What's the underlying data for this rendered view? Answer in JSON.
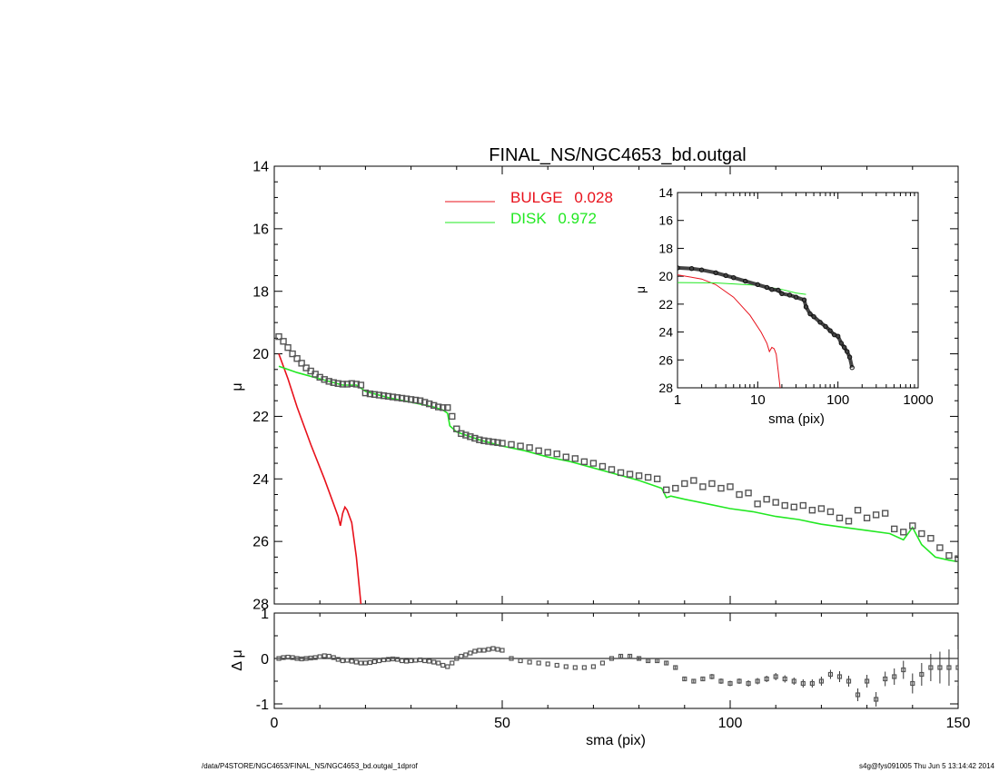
{
  "title": "FINAL_NS/NGC4653_bd.outgal",
  "footer": {
    "left": "/data/P4STORE/NGC4653/FINAL_NS/NGC4653_bd.outgal_1dprof",
    "right": "s4g@fys091005  Thu Jun  5 13:14:42 2014"
  },
  "colors": {
    "bulge": "#e8111b",
    "disk": "#22e822",
    "data": "#555555",
    "axis": "#000000"
  },
  "legend": [
    {
      "label": "BULGE",
      "value": "0.028",
      "color": "#e8111b"
    },
    {
      "label": "DISK",
      "value": "0.972",
      "color": "#22e822"
    }
  ],
  "chart_data": [
    {
      "name": "main-profile",
      "type": "line",
      "xlabel": "sma (pix)",
      "ylabel": "μ",
      "xlim": [
        0,
        150
      ],
      "ylim": [
        28,
        14
      ],
      "xticks": [
        "0",
        "50",
        "100",
        "150"
      ],
      "yticks": [
        "14",
        "16",
        "18",
        "20",
        "22",
        "24",
        "26",
        "28"
      ],
      "series": [
        {
          "name": "BULGE",
          "x": [
            1,
            3,
            5,
            8,
            11,
            13,
            14,
            14.5,
            15,
            15.5,
            16,
            17,
            18,
            19
          ],
          "y": [
            20.0,
            20.8,
            21.7,
            22.9,
            24.0,
            24.8,
            25.2,
            25.5,
            25.1,
            24.9,
            25.0,
            25.4,
            26.5,
            28.0
          ]
        },
        {
          "name": "DISK",
          "x": [
            1,
            5,
            10,
            15,
            18,
            19,
            20,
            25,
            30,
            35,
            37,
            38,
            38.5,
            40,
            45,
            50,
            55,
            60,
            65,
            70,
            75,
            80,
            85,
            86,
            87,
            90,
            95,
            100,
            105,
            110,
            115,
            120,
            125,
            130,
            135,
            138,
            140,
            142,
            145,
            148,
            150
          ],
          "y": [
            20.4,
            20.6,
            20.8,
            21.0,
            21.0,
            21.1,
            21.2,
            21.4,
            21.55,
            21.7,
            21.8,
            21.9,
            22.3,
            22.5,
            22.75,
            22.95,
            23.1,
            23.3,
            23.45,
            23.65,
            23.85,
            24.05,
            24.3,
            24.6,
            24.55,
            24.65,
            24.8,
            24.95,
            25.05,
            25.2,
            25.3,
            25.45,
            25.55,
            25.65,
            25.75,
            25.95,
            25.55,
            26.1,
            26.5,
            26.6,
            26.65
          ]
        },
        {
          "name": "data",
          "x": [
            1,
            2,
            3,
            4,
            5,
            6,
            7,
            8,
            9,
            10,
            11,
            12,
            13,
            14,
            15,
            16,
            17,
            18,
            19,
            20,
            21,
            22,
            23,
            24,
            25,
            26,
            27,
            28,
            29,
            30,
            31,
            32,
            33,
            34,
            35,
            36,
            37,
            38,
            39,
            40,
            41,
            42,
            43,
            44,
            45,
            46,
            47,
            48,
            49,
            50,
            52,
            54,
            56,
            58,
            60,
            62,
            64,
            66,
            68,
            70,
            72,
            74,
            76,
            78,
            80,
            82,
            84,
            86,
            88,
            90,
            92,
            94,
            96,
            98,
            100,
            102,
            104,
            106,
            108,
            110,
            112,
            114,
            116,
            118,
            120,
            122,
            124,
            126,
            128,
            130,
            132,
            134,
            136,
            138,
            140,
            142,
            144,
            146,
            148,
            150
          ],
          "y": [
            19.45,
            19.6,
            19.8,
            20.0,
            20.15,
            20.3,
            20.45,
            20.55,
            20.65,
            20.75,
            20.82,
            20.88,
            20.92,
            20.95,
            20.97,
            20.97,
            20.95,
            20.97,
            21.0,
            21.25,
            21.28,
            21.3,
            21.32,
            21.34,
            21.36,
            21.38,
            21.4,
            21.42,
            21.44,
            21.46,
            21.48,
            21.5,
            21.55,
            21.6,
            21.65,
            21.7,
            21.72,
            21.72,
            22.0,
            22.4,
            22.55,
            22.6,
            22.65,
            22.7,
            22.75,
            22.78,
            22.8,
            22.82,
            22.84,
            22.86,
            22.9,
            22.95,
            23.0,
            23.1,
            23.15,
            23.2,
            23.3,
            23.35,
            23.45,
            23.5,
            23.6,
            23.7,
            23.8,
            23.85,
            23.9,
            23.95,
            24.0,
            24.35,
            24.3,
            24.15,
            24.05,
            24.25,
            24.15,
            24.3,
            24.25,
            24.5,
            24.45,
            24.8,
            24.65,
            24.75,
            24.85,
            24.9,
            24.85,
            25.0,
            24.95,
            25.05,
            25.25,
            25.35,
            25.0,
            25.25,
            25.15,
            25.1,
            25.6,
            25.7,
            25.5,
            25.75,
            25.9,
            26.2,
            26.45,
            26.55
          ]
        }
      ]
    },
    {
      "name": "residuals",
      "type": "scatter",
      "xlabel": "sma (pix)",
      "ylabel": "Δ μ",
      "xlim": [
        0,
        150
      ],
      "ylim": [
        -1.1,
        1.0
      ],
      "xticks": [
        "0",
        "50",
        "100",
        "150"
      ],
      "yticks": [
        "1",
        "0",
        "-1"
      ],
      "series": [
        {
          "name": "residual",
          "x": [
            1,
            2,
            3,
            4,
            5,
            6,
            7,
            8,
            9,
            10,
            11,
            12,
            13,
            14,
            15,
            16,
            17,
            18,
            19,
            20,
            21,
            22,
            23,
            24,
            25,
            26,
            27,
            28,
            29,
            30,
            31,
            32,
            33,
            34,
            35,
            36,
            37,
            38,
            39,
            40,
            41,
            42,
            43,
            44,
            45,
            46,
            47,
            48,
            49,
            50,
            52,
            54,
            56,
            58,
            60,
            62,
            64,
            66,
            68,
            70,
            72,
            74,
            76,
            78,
            80,
            82,
            84,
            86,
            88,
            90,
            92,
            94,
            96,
            98,
            100,
            102,
            104,
            106,
            108,
            110,
            112,
            114,
            116,
            118,
            120,
            122,
            124,
            126,
            128,
            130,
            132,
            134,
            136,
            138,
            140,
            142,
            144,
            146,
            148,
            150
          ],
          "y": [
            0.0,
            0.02,
            0.03,
            0.02,
            0.0,
            -0.01,
            0.0,
            0.01,
            0.02,
            0.04,
            0.06,
            0.05,
            0.02,
            -0.02,
            -0.05,
            -0.04,
            -0.06,
            -0.08,
            -0.1,
            -0.1,
            -0.09,
            -0.07,
            -0.05,
            -0.03,
            -0.02,
            -0.01,
            -0.02,
            -0.05,
            -0.06,
            -0.05,
            -0.04,
            -0.03,
            -0.05,
            -0.06,
            -0.08,
            -0.1,
            -0.15,
            -0.18,
            -0.1,
            0.0,
            0.05,
            0.08,
            0.12,
            0.16,
            0.18,
            0.18,
            0.2,
            0.22,
            0.2,
            0.18,
            0.0,
            -0.05,
            -0.08,
            -0.1,
            -0.12,
            -0.15,
            -0.18,
            -0.2,
            -0.2,
            -0.18,
            -0.1,
            0.0,
            0.05,
            0.05,
            0.0,
            -0.05,
            -0.05,
            -0.1,
            -0.2,
            -0.45,
            -0.5,
            -0.45,
            -0.4,
            -0.5,
            -0.55,
            -0.5,
            -0.55,
            -0.5,
            -0.45,
            -0.4,
            -0.45,
            -0.5,
            -0.55,
            -0.55,
            -0.5,
            -0.35,
            -0.4,
            -0.5,
            -0.8,
            -0.5,
            -0.9,
            -0.45,
            -0.4,
            -0.25,
            -0.55,
            -0.35,
            -0.2,
            -0.2,
            -0.2,
            -0.2
          ],
          "err": [
            0.02,
            0.02,
            0.02,
            0.02,
            0.02,
            0.02,
            0.02,
            0.02,
            0.02,
            0.02,
            0.02,
            0.02,
            0.02,
            0.02,
            0.02,
            0.02,
            0.02,
            0.02,
            0.02,
            0.02,
            0.02,
            0.02,
            0.02,
            0.02,
            0.02,
            0.02,
            0.02,
            0.02,
            0.02,
            0.02,
            0.02,
            0.02,
            0.02,
            0.02,
            0.02,
            0.02,
            0.02,
            0.02,
            0.02,
            0.02,
            0.02,
            0.02,
            0.02,
            0.02,
            0.02,
            0.02,
            0.02,
            0.02,
            0.02,
            0.02,
            0.03,
            0.03,
            0.03,
            0.03,
            0.03,
            0.03,
            0.03,
            0.03,
            0.03,
            0.03,
            0.03,
            0.03,
            0.04,
            0.04,
            0.04,
            0.04,
            0.04,
            0.05,
            0.05,
            0.05,
            0.05,
            0.05,
            0.06,
            0.06,
            0.06,
            0.06,
            0.07,
            0.07,
            0.07,
            0.08,
            0.08,
            0.08,
            0.09,
            0.09,
            0.1,
            0.1,
            0.12,
            0.12,
            0.14,
            0.14,
            0.16,
            0.16,
            0.18,
            0.2,
            0.22,
            0.25,
            0.3,
            0.35,
            0.4,
            0.4
          ]
        }
      ]
    },
    {
      "name": "inset-log-profile",
      "type": "line",
      "xlabel": "sma (pix)",
      "ylabel": "μ",
      "xscale": "log",
      "xlim": [
        1,
        1000
      ],
      "ylim": [
        28,
        14
      ],
      "xticks": [
        "1",
        "10",
        "100",
        "1000"
      ],
      "yticks": [
        "14",
        "16",
        "18",
        "20",
        "22",
        "24",
        "26",
        "28"
      ],
      "series": [
        {
          "name": "BULGE",
          "x": [
            1,
            2,
            3,
            5,
            8,
            11,
            13,
            14,
            15,
            16,
            17,
            18,
            19
          ],
          "y": [
            19.9,
            20.2,
            20.6,
            21.5,
            22.8,
            24.0,
            24.8,
            25.4,
            25.1,
            25.2,
            25.6,
            26.8,
            28.0
          ]
        },
        {
          "name": "DISK",
          "x": [
            1,
            3,
            10,
            20,
            30,
            40
          ],
          "y": [
            20.45,
            20.48,
            20.65,
            20.95,
            21.2,
            21.3
          ]
        },
        {
          "name": "data",
          "x": [
            1,
            1.5,
            2,
            3,
            4,
            5,
            7,
            10,
            13,
            15,
            18,
            20,
            25,
            30,
            38,
            40,
            45,
            50,
            60,
            70,
            80,
            90,
            100,
            110,
            120,
            130,
            140,
            150
          ],
          "y": [
            19.4,
            19.45,
            19.55,
            19.75,
            19.95,
            20.1,
            20.35,
            20.6,
            20.8,
            20.95,
            21.0,
            21.25,
            21.35,
            21.5,
            21.7,
            22.2,
            22.7,
            22.9,
            23.3,
            23.6,
            23.9,
            24.2,
            24.3,
            24.8,
            25.1,
            25.4,
            25.8,
            26.55
          ]
        }
      ]
    }
  ]
}
